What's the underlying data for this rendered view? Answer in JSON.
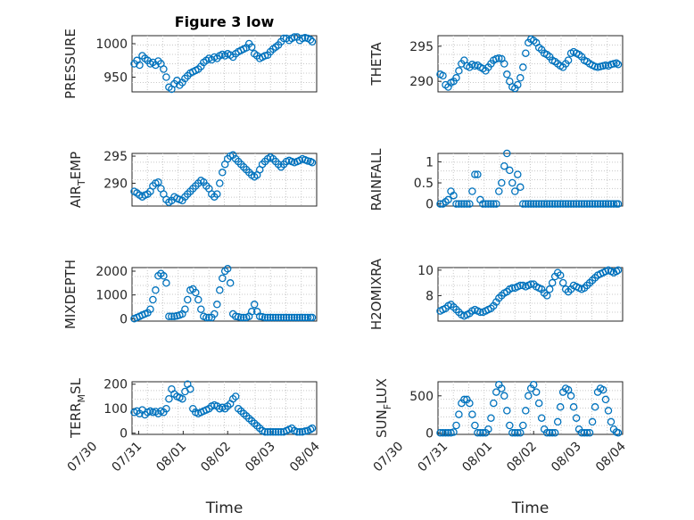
{
  "figure": {
    "title": "Figure 3 low",
    "colors": {
      "marker": "#0072BD",
      "axis": "#262626",
      "grid": "#c8c8c8"
    }
  },
  "chart_data": [
    {
      "id": "pressure",
      "type": "scatter",
      "title": "Figure 3 low",
      "ylabel": "PRESSURE",
      "ylabel_sub": "",
      "ylabel_tail": "",
      "xlabel": "",
      "ylim": [
        928,
        1012
      ],
      "yticks": [
        950,
        1000
      ],
      "xlim": [
        0.85,
        5.0
      ],
      "x_ticks": [],
      "grid": true,
      "x": [
        0.9,
        0.96,
        1.02,
        1.08,
        1.14,
        1.2,
        1.26,
        1.32,
        1.38,
        1.44,
        1.5,
        1.56,
        1.62,
        1.68,
        1.74,
        1.8,
        1.86,
        1.92,
        1.98,
        2.04,
        2.1,
        2.16,
        2.22,
        2.28,
        2.34,
        2.4,
        2.46,
        2.52,
        2.58,
        2.64,
        2.7,
        2.76,
        2.82,
        2.88,
        2.94,
        3.0,
        3.06,
        3.12,
        3.18,
        3.24,
        3.3,
        3.36,
        3.42,
        3.48,
        3.54,
        3.6,
        3.66,
        3.72,
        3.78,
        3.84,
        3.9,
        3.96,
        4.02,
        4.08,
        4.14,
        4.2,
        4.26,
        4.32,
        4.38,
        4.44,
        4.5,
        4.56,
        4.62,
        4.68,
        4.74,
        4.8,
        4.86,
        4.9
      ],
      "y": [
        970,
        975,
        968,
        982,
        978,
        975,
        970,
        972,
        968,
        974,
        970,
        962,
        950,
        935,
        932,
        940,
        945,
        938,
        942,
        948,
        952,
        956,
        958,
        960,
        962,
        966,
        972,
        975,
        978,
        976,
        980,
        978,
        982,
        984,
        982,
        985,
        983,
        980,
        985,
        988,
        990,
        992,
        994,
        1000,
        995,
        985,
        982,
        978,
        980,
        982,
        983,
        988,
        992,
        995,
        998,
        1003,
        1008,
        1008,
        1005,
        1008,
        1010,
        1010,
        1005,
        1008,
        1009,
        1008,
        1006,
        1003
      ]
    },
    {
      "id": "theta",
      "type": "scatter",
      "ylabel": "THETA",
      "ylabel_sub": "",
      "ylabel_tail": "",
      "xlabel": "",
      "ylim": [
        288.5,
        296.5
      ],
      "yticks": [
        290,
        295
      ],
      "xlim": [
        0.85,
        5.0
      ],
      "x_ticks": [],
      "grid": true,
      "x": [
        0.9,
        0.96,
        1.02,
        1.08,
        1.14,
        1.2,
        1.26,
        1.32,
        1.38,
        1.44,
        1.5,
        1.56,
        1.62,
        1.68,
        1.74,
        1.8,
        1.86,
        1.92,
        1.98,
        2.04,
        2.1,
        2.16,
        2.22,
        2.28,
        2.34,
        2.4,
        2.46,
        2.52,
        2.58,
        2.64,
        2.7,
        2.76,
        2.82,
        2.88,
        2.94,
        3.0,
        3.06,
        3.12,
        3.18,
        3.24,
        3.3,
        3.36,
        3.42,
        3.48,
        3.54,
        3.6,
        3.66,
        3.72,
        3.78,
        3.84,
        3.9,
        3.96,
        4.02,
        4.08,
        4.14,
        4.2,
        4.26,
        4.32,
        4.38,
        4.44,
        4.5,
        4.56,
        4.62,
        4.68,
        4.74,
        4.8,
        4.86,
        4.9
      ],
      "y": [
        291,
        290.8,
        289.5,
        289.2,
        289.8,
        290,
        290.5,
        291.5,
        292.5,
        293,
        292.2,
        292,
        292.4,
        292.2,
        292.3,
        292,
        291.8,
        291.5,
        292,
        292.5,
        293,
        293.2,
        293.3,
        293.2,
        292.5,
        291,
        290,
        289.2,
        289,
        289.5,
        290.5,
        292,
        294,
        295.5,
        296,
        295.8,
        295.5,
        294.8,
        294.5,
        294,
        293.8,
        293.5,
        293,
        292.8,
        292.5,
        292.2,
        292,
        292.5,
        293,
        294,
        294.2,
        294,
        293.8,
        293.5,
        293,
        292.8,
        292.5,
        292.3,
        292.1,
        292,
        292.1,
        292.2,
        292.3,
        292.2,
        292.4,
        292.5,
        292.6,
        292.4
      ]
    },
    {
      "id": "air_temp",
      "type": "scatter",
      "ylabel": "AIR",
      "ylabel_sub": "T",
      "ylabel_tail": "EMP",
      "xlabel": "",
      "ylim": [
        285.8,
        295.5
      ],
      "yticks": [
        290,
        295
      ],
      "xlim": [
        0.85,
        5.0
      ],
      "x_ticks": [],
      "grid": true,
      "x": [
        0.9,
        0.96,
        1.02,
        1.08,
        1.14,
        1.2,
        1.26,
        1.32,
        1.38,
        1.44,
        1.5,
        1.56,
        1.62,
        1.68,
        1.74,
        1.8,
        1.86,
        1.92,
        1.98,
        2.04,
        2.1,
        2.16,
        2.22,
        2.28,
        2.34,
        2.4,
        2.46,
        2.52,
        2.58,
        2.64,
        2.7,
        2.76,
        2.82,
        2.88,
        2.94,
        3.0,
        3.06,
        3.12,
        3.18,
        3.24,
        3.3,
        3.36,
        3.42,
        3.48,
        3.54,
        3.6,
        3.66,
        3.72,
        3.78,
        3.84,
        3.9,
        3.96,
        4.02,
        4.08,
        4.14,
        4.2,
        4.26,
        4.32,
        4.38,
        4.44,
        4.5,
        4.56,
        4.62,
        4.68,
        4.74,
        4.8,
        4.86,
        4.9
      ],
      "y": [
        288.5,
        288.2,
        287.8,
        287.5,
        287.8,
        288,
        288.5,
        289.5,
        290,
        290.2,
        289,
        288,
        287,
        286.5,
        286.8,
        287.5,
        287.2,
        287,
        286.8,
        287.5,
        288,
        288.5,
        289,
        289.5,
        290,
        290.5,
        290.2,
        289.5,
        289,
        288,
        287.5,
        288,
        290,
        292,
        293.5,
        294.5,
        295,
        295.2,
        294.5,
        294,
        293.5,
        293,
        292.5,
        292,
        291.5,
        291.2,
        291.5,
        292.5,
        293.5,
        294,
        294.5,
        294.8,
        294.5,
        294,
        293.5,
        293,
        293.5,
        294,
        294.2,
        294,
        293.8,
        294,
        294.2,
        294.5,
        294.3,
        294.1,
        294,
        293.8
      ]
    },
    {
      "id": "rainfall",
      "type": "scatter",
      "ylabel": "RAINFALL",
      "ylabel_sub": "",
      "ylabel_tail": "",
      "xlabel": "",
      "ylim": [
        -0.05,
        1.2
      ],
      "yticks": [
        0,
        0.5,
        1
      ],
      "xlim": [
        0.85,
        5.0
      ],
      "x_ticks": [],
      "grid": true,
      "x": [
        0.9,
        0.96,
        1.02,
        1.08,
        1.14,
        1.2,
        1.26,
        1.32,
        1.38,
        1.44,
        1.5,
        1.56,
        1.62,
        1.68,
        1.74,
        1.8,
        1.86,
        1.92,
        1.98,
        2.04,
        2.1,
        2.16,
        2.22,
        2.28,
        2.34,
        2.4,
        2.46,
        2.52,
        2.58,
        2.64,
        2.7,
        2.76,
        2.82,
        2.88,
        2.94,
        3.0,
        3.06,
        3.12,
        3.18,
        3.24,
        3.3,
        3.36,
        3.42,
        3.48,
        3.54,
        3.6,
        3.66,
        3.72,
        3.78,
        3.84,
        3.9,
        3.96,
        4.02,
        4.08,
        4.14,
        4.2,
        4.26,
        4.32,
        4.38,
        4.44,
        4.5,
        4.56,
        4.62,
        4.68,
        4.74,
        4.8,
        4.86,
        4.9
      ],
      "y": [
        0,
        0,
        0.05,
        0.1,
        0.3,
        0.2,
        0,
        0,
        0,
        0,
        0,
        0,
        0.3,
        0.7,
        0.7,
        0.1,
        0,
        0,
        0,
        0,
        0,
        0,
        0.3,
        0.5,
        0.9,
        1.2,
        0.8,
        0.5,
        0.3,
        0.7,
        0.4,
        0,
        0,
        0,
        0,
        0,
        0,
        0,
        0,
        0,
        0,
        0,
        0,
        0,
        0,
        0,
        0,
        0,
        0,
        0,
        0,
        0,
        0,
        0,
        0,
        0,
        0,
        0,
        0,
        0,
        0,
        0,
        0,
        0,
        0,
        0,
        0,
        0
      ]
    },
    {
      "id": "mixdepth",
      "type": "scatter",
      "ylabel": "MIXDEPTH",
      "ylabel_sub": "",
      "ylabel_tail": "",
      "xlabel": "",
      "ylim": [
        -100,
        2150
      ],
      "yticks": [
        0,
        1000,
        2000
      ],
      "xlim": [
        0.85,
        5.0
      ],
      "x_ticks": [],
      "grid": true,
      "x": [
        0.9,
        0.96,
        1.02,
        1.08,
        1.14,
        1.2,
        1.26,
        1.32,
        1.38,
        1.44,
        1.5,
        1.56,
        1.62,
        1.68,
        1.74,
        1.8,
        1.86,
        1.92,
        1.98,
        2.04,
        2.1,
        2.16,
        2.22,
        2.28,
        2.34,
        2.4,
        2.46,
        2.52,
        2.58,
        2.64,
        2.7,
        2.76,
        2.82,
        2.88,
        2.94,
        3.0,
        3.06,
        3.12,
        3.18,
        3.24,
        3.3,
        3.36,
        3.42,
        3.48,
        3.54,
        3.6,
        3.66,
        3.72,
        3.78,
        3.84,
        3.9,
        3.96,
        4.02,
        4.08,
        4.14,
        4.2,
        4.26,
        4.32,
        4.38,
        4.44,
        4.5,
        4.56,
        4.62,
        4.68,
        4.74,
        4.8,
        4.86,
        4.9
      ],
      "y": [
        0,
        50,
        100,
        150,
        200,
        250,
        400,
        800,
        1200,
        1800,
        1900,
        1800,
        1500,
        100,
        100,
        100,
        120,
        150,
        200,
        400,
        800,
        1200,
        1250,
        1100,
        800,
        400,
        100,
        50,
        50,
        50,
        200,
        600,
        1200,
        1700,
        2000,
        2100,
        1500,
        200,
        100,
        80,
        50,
        50,
        50,
        100,
        300,
        600,
        300,
        100,
        80,
        50,
        50,
        50,
        50,
        50,
        50,
        50,
        50,
        50,
        50,
        50,
        50,
        50,
        50,
        50,
        50,
        50,
        50,
        50
      ]
    },
    {
      "id": "h2omixra",
      "type": "scatter",
      "ylabel": "H2OMIXRA",
      "ylabel_sub": "",
      "ylabel_tail": "",
      "xlabel": "",
      "ylim": [
        6.0,
        10.2
      ],
      "yticks": [
        8,
        10
      ],
      "xlim": [
        0.85,
        5.0
      ],
      "x_ticks": [],
      "grid": true,
      "x": [
        0.9,
        0.96,
        1.02,
        1.08,
        1.14,
        1.2,
        1.26,
        1.32,
        1.38,
        1.44,
        1.5,
        1.56,
        1.62,
        1.68,
        1.74,
        1.8,
        1.86,
        1.92,
        1.98,
        2.04,
        2.1,
        2.16,
        2.22,
        2.28,
        2.34,
        2.4,
        2.46,
        2.52,
        2.58,
        2.64,
        2.7,
        2.76,
        2.82,
        2.88,
        2.94,
        3.0,
        3.06,
        3.12,
        3.18,
        3.24,
        3.3,
        3.36,
        3.42,
        3.48,
        3.54,
        3.6,
        3.66,
        3.72,
        3.78,
        3.84,
        3.9,
        3.96,
        4.02,
        4.08,
        4.14,
        4.2,
        4.26,
        4.32,
        4.38,
        4.44,
        4.5,
        4.56,
        4.62,
        4.68,
        4.74,
        4.8,
        4.86,
        4.9
      ],
      "y": [
        6.8,
        6.9,
        7.0,
        7.2,
        7.3,
        7.1,
        6.9,
        6.7,
        6.5,
        6.4,
        6.5,
        6.6,
        6.8,
        6.9,
        6.8,
        6.7,
        6.7,
        6.8,
        6.9,
        7.0,
        7.2,
        7.5,
        7.8,
        8.0,
        8.2,
        8.3,
        8.5,
        8.6,
        8.6,
        8.7,
        8.8,
        8.8,
        8.7,
        8.8,
        8.9,
        8.9,
        8.7,
        8.6,
        8.5,
        8.2,
        8.0,
        8.5,
        9.0,
        9.5,
        9.8,
        9.6,
        9.0,
        8.5,
        8.3,
        8.5,
        8.8,
        8.7,
        8.6,
        8.5,
        8.6,
        8.8,
        9.0,
        9.2,
        9.4,
        9.6,
        9.7,
        9.8,
        9.9,
        10.0,
        9.9,
        9.8,
        9.9,
        10.0
      ]
    },
    {
      "id": "terr_msl",
      "type": "scatter",
      "ylabel": "TERR",
      "ylabel_sub": "M",
      "ylabel_tail": "SL",
      "xlabel": "Time",
      "ylim": [
        -5,
        210
      ],
      "yticks": [
        0,
        100,
        200
      ],
      "xlim": [
        0.85,
        5.0
      ],
      "x_ticks": [
        "07/30",
        "07/31",
        "08/01",
        "08/02",
        "08/03",
        "08/04"
      ],
      "grid": true,
      "x": [
        0.9,
        0.96,
        1.02,
        1.08,
        1.14,
        1.2,
        1.26,
        1.32,
        1.38,
        1.44,
        1.5,
        1.56,
        1.62,
        1.68,
        1.74,
        1.8,
        1.86,
        1.92,
        1.98,
        2.04,
        2.1,
        2.16,
        2.22,
        2.28,
        2.34,
        2.4,
        2.46,
        2.52,
        2.58,
        2.64,
        2.7,
        2.76,
        2.82,
        2.88,
        2.94,
        3.0,
        3.06,
        3.12,
        3.18,
        3.24,
        3.3,
        3.36,
        3.42,
        3.48,
        3.54,
        3.6,
        3.66,
        3.72,
        3.78,
        3.84,
        3.9,
        3.96,
        4.02,
        4.08,
        4.14,
        4.2,
        4.26,
        4.32,
        4.38,
        4.44,
        4.5,
        4.56,
        4.62,
        4.68,
        4.74,
        4.8,
        4.86,
        4.9
      ],
      "y": [
        85,
        90,
        80,
        95,
        75,
        85,
        90,
        85,
        88,
        80,
        90,
        85,
        100,
        140,
        180,
        160,
        150,
        145,
        140,
        170,
        200,
        180,
        100,
        85,
        80,
        85,
        90,
        95,
        100,
        110,
        115,
        110,
        100,
        105,
        100,
        110,
        120,
        140,
        150,
        100,
        90,
        80,
        70,
        60,
        50,
        40,
        30,
        20,
        10,
        5,
        5,
        5,
        5,
        5,
        5,
        5,
        5,
        10,
        15,
        20,
        10,
        5,
        5,
        5,
        8,
        10,
        15,
        20
      ]
    },
    {
      "id": "sun_flux",
      "type": "scatter",
      "ylabel": "SUN",
      "ylabel_sub": "F",
      "ylabel_tail": "LUX",
      "xlabel": "Time",
      "ylim": [
        -20,
        690
      ],
      "yticks": [
        0,
        500
      ],
      "xlim": [
        0.85,
        5.0
      ],
      "x_ticks": [
        "07/30",
        "07/31",
        "08/01",
        "08/02",
        "08/03",
        "08/04"
      ],
      "grid": true,
      "x": [
        0.9,
        0.96,
        1.02,
        1.08,
        1.14,
        1.2,
        1.26,
        1.32,
        1.38,
        1.44,
        1.5,
        1.56,
        1.62,
        1.68,
        1.74,
        1.8,
        1.86,
        1.92,
        1.98,
        2.04,
        2.1,
        2.16,
        2.22,
        2.28,
        2.34,
        2.4,
        2.46,
        2.52,
        2.58,
        2.64,
        2.7,
        2.76,
        2.82,
        2.88,
        2.94,
        3.0,
        3.06,
        3.12,
        3.18,
        3.24,
        3.3,
        3.36,
        3.42,
        3.48,
        3.54,
        3.6,
        3.66,
        3.72,
        3.78,
        3.84,
        3.9,
        3.96,
        4.02,
        4.08,
        4.14,
        4.2,
        4.26,
        4.32,
        4.38,
        4.44,
        4.5,
        4.56,
        4.62,
        4.68,
        4.74,
        4.8,
        4.86,
        4.9
      ],
      "y": [
        0,
        0,
        0,
        0,
        0,
        10,
        100,
        250,
        400,
        450,
        450,
        400,
        250,
        100,
        0,
        0,
        0,
        0,
        50,
        200,
        400,
        550,
        650,
        600,
        500,
        300,
        100,
        0,
        0,
        0,
        0,
        100,
        300,
        500,
        600,
        650,
        550,
        400,
        200,
        50,
        0,
        0,
        0,
        0,
        150,
        350,
        550,
        600,
        580,
        500,
        350,
        200,
        50,
        0,
        0,
        0,
        0,
        150,
        350,
        550,
        600,
        580,
        450,
        300,
        150,
        50,
        10,
        0
      ]
    }
  ]
}
